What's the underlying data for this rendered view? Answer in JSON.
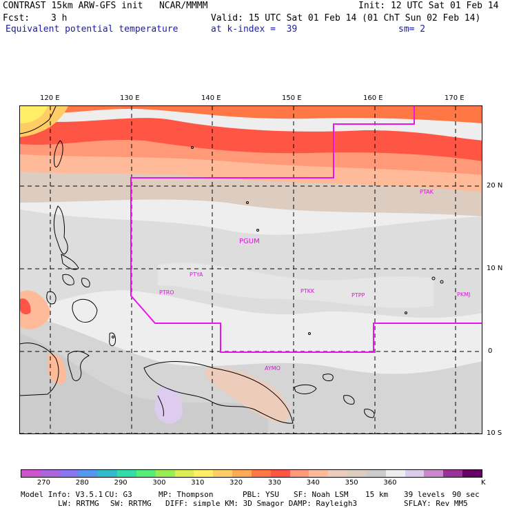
{
  "header": {
    "model": "CONTRAST 15km ARW-GFS init   NCAR/MMMM",
    "init": "Init: 12 UTC Sat 01 Feb 14",
    "fcst_label": "Fcst:",
    "fcst_value": "3 h",
    "valid": "Valid: 15 UTC Sat 01 Feb 14 (01 ChT Sun 02 Feb 14)",
    "field": "Equivalent potential temperature",
    "level": "at k-index =  39",
    "smoothing": "sm= 2"
  },
  "map": {
    "lon_labels": [
      "120 E",
      "130 E",
      "140 E",
      "150 E",
      "160 E",
      "170 E"
    ],
    "lat_labels": [
      "20 N",
      "10 N",
      "0",
      "10 S"
    ],
    "stations": [
      "PTAK",
      "PGUM",
      "PTYA",
      "PTRO",
      "PTKK",
      "PTPP",
      "PKMJ",
      "AYMO"
    ]
  },
  "colorbar": {
    "colors": [
      "#cc55cc",
      "#aa66dd",
      "#8877ee",
      "#5599ee",
      "#33bbcc",
      "#33ddaa",
      "#55ee77",
      "#99ee55",
      "#ddee55",
      "#ffee66",
      "#ffcc66",
      "#ffaa55",
      "#ff7744",
      "#ff5544",
      "#ff9977",
      "#ffbb99",
      "#eeccbb",
      "#ddccc0",
      "#cccccc",
      "#eeeeee",
      "#ddccee",
      "#cc88cc",
      "#993399",
      "#660066"
    ],
    "tick_labels": [
      "270",
      "280",
      "290",
      "300",
      "310",
      "320",
      "330",
      "340",
      "350",
      "360"
    ],
    "unit": "K"
  },
  "footer": {
    "line1": [
      "Model Info: V3.5.1",
      "CU: G3",
      "MP: Thompson",
      "PBL: YSU",
      "SF: Noah LSM",
      "15 km",
      "39 levels",
      "90 sec"
    ],
    "line2": [
      "LW: RRTMG",
      "SW: RRTMG",
      "DIFF: simple KM: 3D Smagor DAMP: Rayleigh3",
      "SFLAY: Rev MM5"
    ]
  }
}
